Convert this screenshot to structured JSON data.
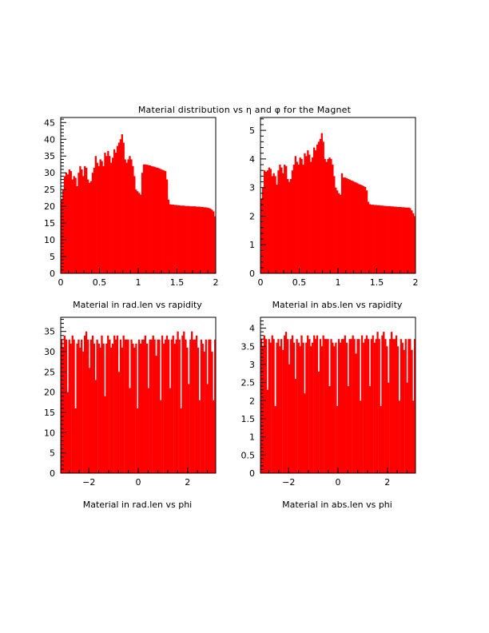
{
  "title": "Material distribution vs η and φ for the Magnet",
  "colors": {
    "fill": "#ff0000",
    "frame": "#000000"
  },
  "chart_data": [
    {
      "type": "bar",
      "xlabel": "Material in rad.len vs rapidity",
      "xlim": [
        0,
        2
      ],
      "ylim": [
        0,
        46.5
      ],
      "xticks": [
        0,
        0.5,
        1,
        1.5,
        2
      ],
      "xtick_labels": [
        "0",
        "0.5",
        "1",
        "1.5",
        "2"
      ],
      "yticks": [
        0,
        5,
        10,
        15,
        20,
        25,
        30,
        35,
        40,
        45
      ],
      "ytick_labels": [
        "0",
        "5",
        "10",
        "15",
        "20",
        "25",
        "30",
        "35",
        "40",
        "45"
      ],
      "x": [
        0.01,
        0.03,
        0.05,
        0.07,
        0.09,
        0.11,
        0.13,
        0.15,
        0.17,
        0.19,
        0.21,
        0.23,
        0.25,
        0.27,
        0.29,
        0.31,
        0.33,
        0.35,
        0.37,
        0.39,
        0.41,
        0.43,
        0.45,
        0.47,
        0.49,
        0.51,
        0.53,
        0.55,
        0.57,
        0.59,
        0.61,
        0.63,
        0.65,
        0.67,
        0.69,
        0.71,
        0.73,
        0.75,
        0.77,
        0.79,
        0.81,
        0.83,
        0.85,
        0.87,
        0.89,
        0.91,
        0.93,
        0.95,
        0.97,
        0.99,
        1.01,
        1.03,
        1.05,
        1.07,
        1.09,
        1.11,
        1.13,
        1.15,
        1.17,
        1.19,
        1.21,
        1.23,
        1.25,
        1.27,
        1.29,
        1.31,
        1.33,
        1.35,
        1.37,
        1.39,
        1.41,
        1.43,
        1.45,
        1.47,
        1.49,
        1.51,
        1.53,
        1.55,
        1.57,
        1.59,
        1.61,
        1.63,
        1.65,
        1.67,
        1.69,
        1.71,
        1.73,
        1.75,
        1.77,
        1.79,
        1.81,
        1.83,
        1.85,
        1.87,
        1.89,
        1.91,
        1.93,
        1.95,
        1.97,
        1.99
      ],
      "values": [
        22,
        25,
        29,
        30,
        29.5,
        31,
        30.5,
        28,
        29,
        28.5,
        26,
        30,
        32,
        31,
        29,
        32,
        31.5,
        28,
        27,
        27.5,
        30,
        31.5,
        35,
        33,
        32,
        34,
        33.5,
        32,
        36,
        35,
        36.5,
        35,
        33,
        34.5,
        37,
        36,
        38,
        39,
        40,
        41.5,
        39,
        34,
        33,
        34,
        35,
        34,
        32,
        29,
        25,
        24.5,
        24,
        23.5,
        30,
        32.5,
        32.5,
        32.4,
        32.3,
        32.2,
        32,
        31.9,
        31.8,
        31.6,
        31.5,
        31.3,
        31.1,
        30.9,
        30.7,
        30.5,
        28,
        22,
        20.6,
        20.5,
        20.5,
        20.4,
        20.4,
        20.3,
        20.3,
        20.2,
        20.2,
        20.2,
        20.1,
        20.1,
        20.1,
        20,
        20,
        20,
        20,
        19.9,
        19.9,
        19.9,
        19.8,
        19.8,
        19.7,
        19.7,
        19.6,
        19.5,
        19.3,
        19,
        18.5,
        17
      ]
    },
    {
      "type": "bar",
      "xlabel": "Material in abs.len vs rapidity",
      "xlim": [
        0,
        2
      ],
      "ylim": [
        0,
        5.45
      ],
      "xticks": [
        0,
        0.5,
        1,
        1.5,
        2
      ],
      "xtick_labels": [
        "0",
        "0.5",
        "1",
        "1.5",
        "2"
      ],
      "yticks": [
        0,
        1,
        2,
        3,
        4,
        5
      ],
      "ytick_labels": [
        "0",
        "1",
        "2",
        "3",
        "4",
        "5"
      ],
      "x": [
        0.01,
        0.03,
        0.05,
        0.07,
        0.09,
        0.11,
        0.13,
        0.15,
        0.17,
        0.19,
        0.21,
        0.23,
        0.25,
        0.27,
        0.29,
        0.31,
        0.33,
        0.35,
        0.37,
        0.39,
        0.41,
        0.43,
        0.45,
        0.47,
        0.49,
        0.51,
        0.53,
        0.55,
        0.57,
        0.59,
        0.61,
        0.63,
        0.65,
        0.67,
        0.69,
        0.71,
        0.73,
        0.75,
        0.77,
        0.79,
        0.81,
        0.83,
        0.85,
        0.87,
        0.89,
        0.91,
        0.93,
        0.95,
        0.97,
        0.99,
        1.01,
        1.03,
        1.05,
        1.07,
        1.09,
        1.11,
        1.13,
        1.15,
        1.17,
        1.19,
        1.21,
        1.23,
        1.25,
        1.27,
        1.29,
        1.31,
        1.33,
        1.35,
        1.37,
        1.39,
        1.41,
        1.43,
        1.45,
        1.47,
        1.49,
        1.51,
        1.53,
        1.55,
        1.57,
        1.59,
        1.61,
        1.63,
        1.65,
        1.67,
        1.69,
        1.71,
        1.73,
        1.75,
        1.77,
        1.79,
        1.81,
        1.83,
        1.85,
        1.87,
        1.89,
        1.91,
        1.93,
        1.95,
        1.97,
        1.99
      ],
      "values": [
        2.6,
        3.0,
        3.6,
        3.55,
        3.6,
        3.7,
        3.65,
        3.4,
        3.5,
        3.4,
        3.1,
        3.6,
        3.8,
        3.7,
        3.5,
        3.8,
        3.75,
        3.3,
        3.2,
        3.3,
        3.6,
        3.8,
        4.1,
        3.9,
        3.8,
        4.05,
        4.0,
        3.8,
        4.2,
        4.1,
        4.3,
        4.15,
        3.9,
        4.05,
        4.4,
        4.3,
        4.5,
        4.6,
        4.7,
        4.9,
        4.6,
        4.0,
        3.9,
        4.0,
        4.05,
        4.0,
        3.8,
        3.4,
        3.0,
        2.9,
        2.8,
        2.75,
        3.5,
        3.35,
        3.35,
        3.33,
        3.3,
        3.28,
        3.25,
        3.23,
        3.2,
        3.18,
        3.15,
        3.12,
        3.1,
        3.08,
        3.05,
        3.02,
        2.9,
        2.5,
        2.42,
        2.4,
        2.4,
        2.39,
        2.39,
        2.38,
        2.38,
        2.37,
        2.37,
        2.36,
        2.36,
        2.35,
        2.35,
        2.35,
        2.34,
        2.34,
        2.33,
        2.33,
        2.32,
        2.32,
        2.32,
        2.31,
        2.31,
        2.3,
        2.3,
        2.3,
        2.28,
        2.2,
        2.1,
        2.0
      ]
    },
    {
      "type": "bar",
      "xlabel": "Material in rad.len vs phi",
      "xlim": [
        -3.1416,
        3.1416
      ],
      "ylim": [
        0,
        38.5
      ],
      "xticks": [
        -2,
        0,
        2
      ],
      "xtick_labels": [
        "−2",
        "0",
        "2"
      ],
      "yticks": [
        0,
        5,
        10,
        15,
        20,
        25,
        30,
        35
      ],
      "ytick_labels": [
        "0",
        "5",
        "10",
        "15",
        "20",
        "25",
        "30",
        "35"
      ],
      "x": [
        -3.11,
        -3.05,
        -2.99,
        -2.92,
        -2.86,
        -2.8,
        -2.74,
        -2.67,
        -2.61,
        -2.55,
        -2.48,
        -2.42,
        -2.36,
        -2.3,
        -2.23,
        -2.17,
        -2.11,
        -2.04,
        -1.98,
        -1.92,
        -1.85,
        -1.79,
        -1.73,
        -1.67,
        -1.6,
        -1.54,
        -1.48,
        -1.41,
        -1.35,
        -1.29,
        -1.23,
        -1.16,
        -1.1,
        -1.04,
        -0.97,
        -0.91,
        -0.85,
        -0.79,
        -0.72,
        -0.66,
        -0.6,
        -0.53,
        -0.47,
        -0.41,
        -0.35,
        -0.28,
        -0.22,
        -0.16,
        -0.09,
        -0.03,
        0.03,
        0.09,
        0.16,
        0.22,
        0.28,
        0.35,
        0.41,
        0.47,
        0.53,
        0.6,
        0.66,
        0.72,
        0.79,
        0.85,
        0.91,
        0.97,
        1.04,
        1.1,
        1.16,
        1.23,
        1.29,
        1.35,
        1.41,
        1.48,
        1.54,
        1.6,
        1.67,
        1.73,
        1.79,
        1.85,
        1.92,
        1.98,
        2.04,
        2.11,
        2.17,
        2.23,
        2.3,
        2.36,
        2.42,
        2.48,
        2.55,
        2.61,
        2.67,
        2.74,
        2.8,
        2.86,
        2.92,
        2.99,
        3.05,
        3.11
      ],
      "values": [
        33,
        31,
        34,
        33,
        20,
        33,
        32,
        34,
        33,
        16,
        32,
        33,
        31,
        33,
        30,
        34,
        35,
        33,
        26,
        33,
        34,
        32,
        23,
        33,
        32,
        31,
        34,
        32,
        19,
        32,
        34,
        33,
        31,
        32,
        34,
        33,
        34,
        25,
        33,
        31,
        34,
        33,
        33,
        33,
        21,
        33,
        32,
        31,
        32,
        16,
        33,
        32,
        33,
        33,
        34,
        32,
        21,
        33,
        33,
        34,
        33,
        29,
        33,
        33,
        18,
        34,
        32,
        33,
        34,
        33,
        21,
        33,
        34,
        32,
        33,
        35,
        33,
        16,
        34,
        35,
        33,
        31,
        22,
        33,
        35,
        33,
        33,
        34,
        31,
        18,
        33,
        32,
        30,
        33,
        22,
        33,
        33,
        30,
        18,
        33
      ]
    },
    {
      "type": "bar",
      "xlabel": "Material in abs.len vs phi",
      "xlim": [
        -3.1416,
        3.1416
      ],
      "ylim": [
        0,
        4.3
      ],
      "xticks": [
        -2,
        0,
        2
      ],
      "xtick_labels": [
        "−2",
        "0",
        "2"
      ],
      "yticks": [
        0,
        0.5,
        1,
        1.5,
        2,
        2.5,
        3,
        3.5,
        4
      ],
      "ytick_labels": [
        "0",
        "0.5",
        "1",
        "1.5",
        "2",
        "2.5",
        "3",
        "3.5",
        "4"
      ],
      "x": [
        -3.11,
        -3.05,
        -2.99,
        -2.92,
        -2.86,
        -2.8,
        -2.74,
        -2.67,
        -2.61,
        -2.55,
        -2.48,
        -2.42,
        -2.36,
        -2.3,
        -2.23,
        -2.17,
        -2.11,
        -2.04,
        -1.98,
        -1.92,
        -1.85,
        -1.79,
        -1.73,
        -1.67,
        -1.6,
        -1.54,
        -1.48,
        -1.41,
        -1.35,
        -1.29,
        -1.23,
        -1.16,
        -1.1,
        -1.04,
        -0.97,
        -0.91,
        -0.85,
        -0.79,
        -0.72,
        -0.66,
        -0.6,
        -0.53,
        -0.47,
        -0.41,
        -0.35,
        -0.28,
        -0.22,
        -0.16,
        -0.09,
        -0.03,
        0.03,
        0.09,
        0.16,
        0.22,
        0.28,
        0.35,
        0.41,
        0.47,
        0.53,
        0.6,
        0.66,
        0.72,
        0.79,
        0.85,
        0.91,
        0.97,
        1.04,
        1.1,
        1.16,
        1.23,
        1.29,
        1.35,
        1.41,
        1.48,
        1.54,
        1.6,
        1.67,
        1.73,
        1.79,
        1.85,
        1.92,
        1.98,
        2.04,
        2.11,
        2.17,
        2.23,
        2.3,
        2.36,
        2.42,
        2.48,
        2.55,
        2.61,
        2.67,
        2.74,
        2.8,
        2.86,
        2.92,
        2.99,
        3.05,
        3.11
      ],
      "values": [
        3.7,
        3.5,
        3.8,
        3.7,
        2.3,
        3.7,
        3.6,
        3.8,
        3.7,
        1.85,
        3.6,
        3.7,
        3.5,
        3.7,
        3.4,
        3.8,
        3.9,
        3.7,
        3.0,
        3.7,
        3.8,
        3.6,
        2.6,
        3.7,
        3.6,
        3.5,
        3.8,
        3.6,
        2.2,
        3.6,
        3.8,
        3.7,
        3.5,
        3.6,
        3.8,
        3.7,
        3.8,
        2.8,
        3.7,
        3.5,
        3.8,
        3.7,
        3.7,
        3.7,
        2.4,
        3.7,
        3.6,
        3.5,
        3.6,
        1.85,
        3.7,
        3.6,
        3.7,
        3.7,
        3.8,
        3.6,
        2.4,
        3.7,
        3.7,
        3.8,
        3.7,
        3.3,
        3.7,
        3.7,
        2.0,
        3.8,
        3.6,
        3.7,
        3.8,
        3.7,
        2.4,
        3.7,
        3.8,
        3.6,
        3.7,
        3.9,
        3.7,
        1.85,
        3.8,
        3.9,
        3.7,
        3.5,
        2.5,
        3.7,
        3.9,
        3.7,
        3.7,
        3.8,
        3.5,
        2.0,
        3.7,
        3.6,
        3.4,
        3.7,
        2.5,
        3.7,
        3.7,
        3.4,
        2.0,
        3.7
      ]
    }
  ]
}
